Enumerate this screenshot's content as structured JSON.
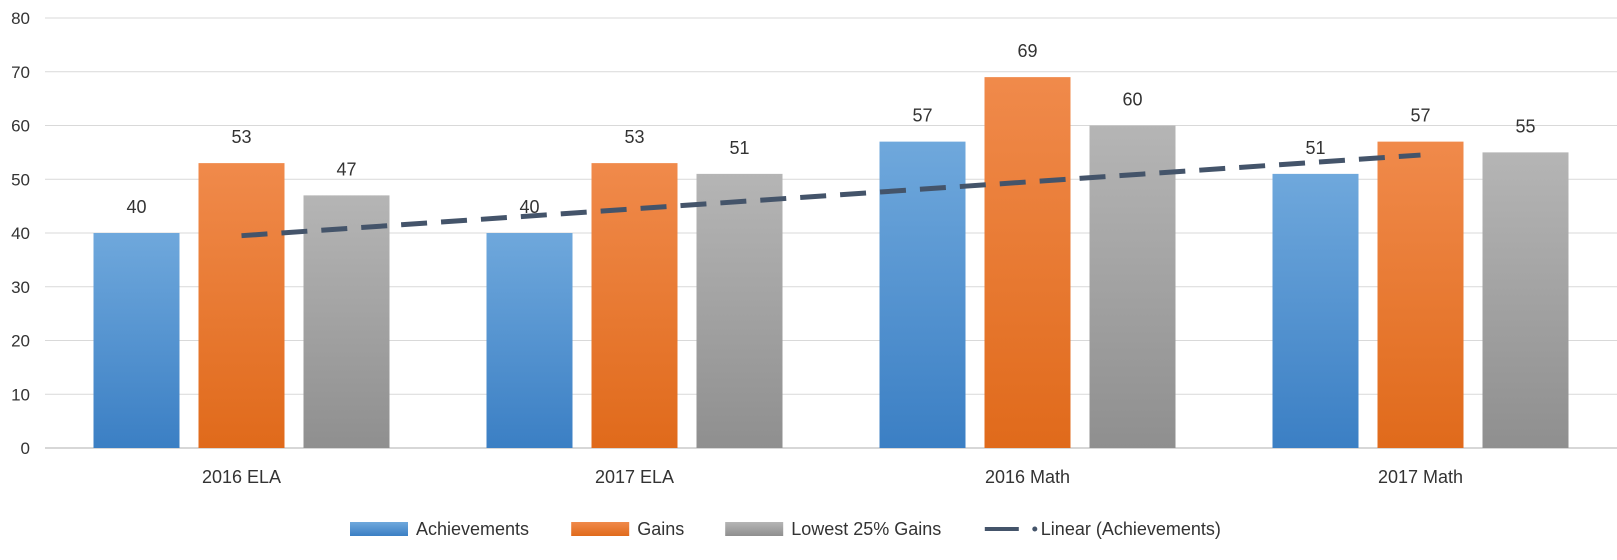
{
  "chart_data": {
    "type": "bar",
    "title": "",
    "xlabel": "",
    "ylabel": "",
    "ylim": [
      0,
      80
    ],
    "ytick_step": 10,
    "grid": true,
    "legend_position": "bottom",
    "categories": [
      "2016 ELA",
      "2017 ELA",
      "2016 Math",
      "2017 Math"
    ],
    "series": [
      {
        "name": "Achievements",
        "values": [
          40,
          40,
          57,
          51
        ],
        "color": "#5b9bd5",
        "color_light": "#6fa8dc",
        "color_dark": "#3b7fc4"
      },
      {
        "name": "Gains",
        "values": [
          53,
          53,
          69,
          57
        ],
        "color": "#ed7d31",
        "color_light": "#f08a4b",
        "color_dark": "#e06a1b"
      },
      {
        "name": "Lowest 25% Gains",
        "values": [
          47,
          51,
          60,
          55
        ],
        "color": "#a5a5a5",
        "color_light": "#b5b5b5",
        "color_dark": "#8f8f8f"
      }
    ],
    "trendline": {
      "name": "Linear (Achievements)",
      "type": "linear",
      "of_series": "Achievements",
      "color": "#44546a",
      "style": "dashed"
    },
    "data_labels": true
  }
}
